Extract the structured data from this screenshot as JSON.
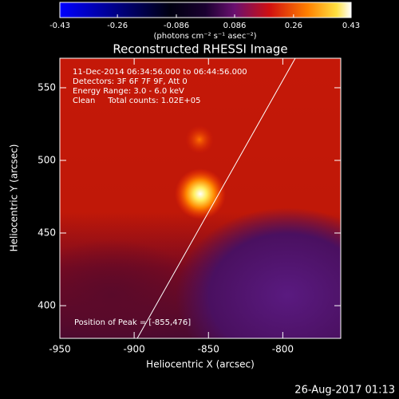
{
  "chart_data": {
    "type": "image",
    "title": "Reconstructed RHESSI Image",
    "x_label": "Heliocentric X (arcsec)",
    "y_label": "Heliocentric Y (arcsec)",
    "xlim": [
      -950,
      -761
    ],
    "ylim": [
      377.5,
      570.3
    ],
    "xticks": [
      -950,
      -900,
      -850,
      -800
    ],
    "yticks": [
      400,
      450,
      500,
      550
    ],
    "colorbar": {
      "label": "(photons cm⁻² s⁻¹ asec⁻²)",
      "lim": [
        -0.43,
        0.43
      ],
      "ticks": [
        -0.43,
        -0.26,
        -0.086,
        0.086,
        0.26,
        0.43
      ]
    },
    "annotations": [
      "11-Dec-2014 06:34:56.000 to 06:44:56.000",
      "Detectors: 3F 6F 7F 9F, Att 0",
      "Energy Range: 3.0 - 6.0 keV",
      "Clean     Total counts: 1.02E+05"
    ],
    "peak_label": "Position of Peak = [-855,476]",
    "timestamp": "26-Aug-2017 01:13"
  }
}
